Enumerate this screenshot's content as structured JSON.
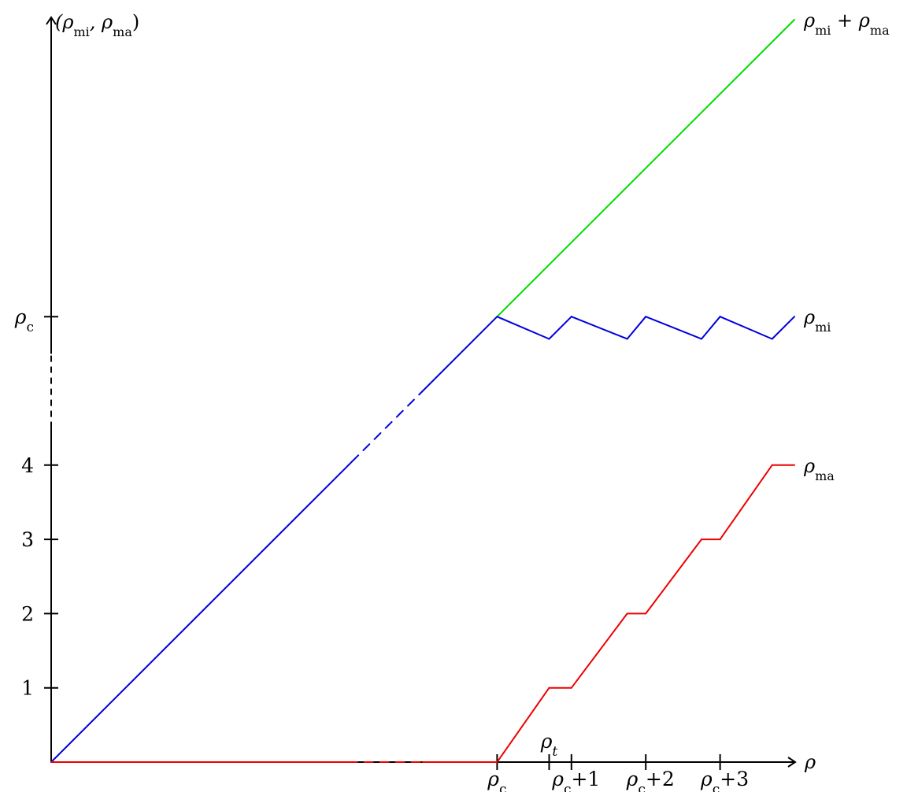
{
  "chart_data": {
    "type": "line",
    "title": "",
    "y_axis": {
      "label_parts": [
        {
          "t": "(ρ"
        },
        {
          "t": "mi",
          "sub": true
        },
        {
          "t": ", ρ"
        },
        {
          "t": "ma",
          "sub": true
        },
        {
          "t": ")"
        }
      ],
      "ticks": [
        {
          "value": 1,
          "label_parts": [
            {
              "t": "1"
            }
          ]
        },
        {
          "value": 2,
          "label_parts": [
            {
              "t": "2"
            }
          ]
        },
        {
          "value": 3,
          "label_parts": [
            {
              "t": "3"
            }
          ]
        },
        {
          "value": 4,
          "label_parts": [
            {
              "t": "4"
            }
          ]
        },
        {
          "value": 6,
          "label_parts": [
            {
              "t": "ρ"
            },
            {
              "t": "c",
              "sub": true
            }
          ]
        }
      ],
      "break": [
        4.5,
        5.5
      ]
    },
    "x_axis": {
      "label_parts": [
        {
          "t": "ρ"
        }
      ],
      "ticks": [
        {
          "value": 6,
          "position": "below",
          "label_parts": [
            {
              "t": "ρ"
            },
            {
              "t": "c",
              "sub": true
            }
          ]
        },
        {
          "value": 6.7,
          "position": "above",
          "label_parts": [
            {
              "t": "ρ"
            },
            {
              "t": "t",
              "sub": true,
              "italic": true
            }
          ]
        },
        {
          "value": 7,
          "position": "below",
          "label_parts": [
            {
              "t": "ρ"
            },
            {
              "t": "c",
              "sub": true
            },
            {
              "t": "+1"
            }
          ]
        },
        {
          "value": 8,
          "position": "below",
          "label_parts": [
            {
              "t": "ρ"
            },
            {
              "t": "c",
              "sub": true
            },
            {
              "t": "+2"
            }
          ]
        },
        {
          "value": 9,
          "position": "below",
          "label_parts": [
            {
              "t": "ρ"
            },
            {
              "t": "c",
              "sub": true
            },
            {
              "t": "+3"
            }
          ]
        }
      ],
      "range": [
        0,
        10
      ]
    },
    "ylim": [
      0,
      10
    ],
    "series": [
      {
        "name_parts": [
          {
            "t": "ρ"
          },
          {
            "t": "mi",
            "sub": true
          },
          {
            "t": " + ρ"
          },
          {
            "t": "ma",
            "sub": true
          }
        ],
        "color": "#00dd00",
        "points": [
          [
            6,
            6
          ],
          [
            10,
            10
          ]
        ]
      },
      {
        "name_parts": [
          {
            "t": "ρ"
          },
          {
            "t": "mi",
            "sub": true
          }
        ],
        "color": "#0000dd",
        "points": [
          [
            0,
            0
          ],
          [
            4.05,
            4.05
          ],
          [
            6,
            6
          ],
          [
            6.7,
            5.7
          ],
          [
            7,
            6
          ],
          [
            7.75,
            5.7
          ],
          [
            8,
            6
          ],
          [
            8.75,
            5.7
          ],
          [
            9,
            6
          ],
          [
            9.7,
            5.7
          ],
          [
            10,
            6
          ]
        ],
        "dashed_range": [
          4,
          5
        ]
      },
      {
        "name_parts": [
          {
            "t": "ρ"
          },
          {
            "t": "ma",
            "sub": true
          }
        ],
        "color": "#ee0000",
        "points": [
          [
            0,
            0
          ],
          [
            6,
            0
          ],
          [
            6.7,
            1
          ],
          [
            7,
            1
          ],
          [
            7.75,
            2
          ],
          [
            8,
            2
          ],
          [
            8.75,
            3
          ],
          [
            9,
            3
          ],
          [
            9.7,
            4
          ],
          [
            10,
            4
          ]
        ],
        "dashed_range": [
          4,
          5
        ]
      }
    ],
    "grid": false,
    "legend": "line-end labels"
  }
}
